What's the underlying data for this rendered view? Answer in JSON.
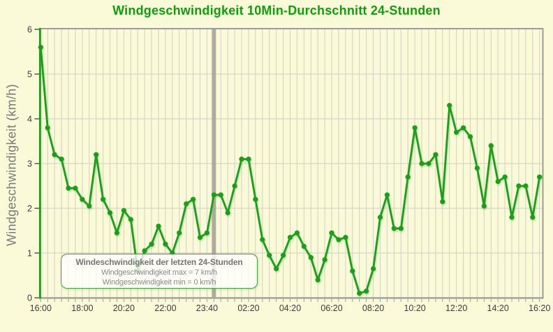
{
  "header": {
    "title": "Windgeschwindigkeit 10Min-Durchschnitt 24-Stunden"
  },
  "tooltip": {
    "title": "Windeschwindigkeit der letzten 24-Stunden",
    "max_line": "Windgeschwindigkeit max = 7 km/h",
    "min_line": "Windgeschwindigkeit min = 0 km/h"
  },
  "chart_data": {
    "type": "line",
    "title": "Windgeschwindigkeit 10Min-Durchschnitt 24-Stunden",
    "xlabel": "",
    "ylabel": "Windgeschwindigkeit (km/h)",
    "ylim": [
      0,
      6
    ],
    "y_ticks": [
      0,
      1,
      2,
      3,
      4,
      5,
      6
    ],
    "grid": true,
    "x_tick_labels": [
      "16:00",
      "18:00",
      "20:20",
      "22:00",
      "23:40",
      "02:20",
      "04:20",
      "06:20",
      "08:20",
      "10:20",
      "12:20",
      "14:20",
      "16:20"
    ],
    "points_per_x_label": 6,
    "values": [
      5.6,
      3.8,
      3.2,
      3.1,
      2.45,
      2.45,
      2.2,
      2.05,
      3.2,
      2.2,
      1.9,
      1.45,
      1.95,
      1.75,
      0.6,
      1.05,
      1.2,
      1.6,
      1.2,
      1.0,
      1.45,
      2.1,
      2.2,
      1.35,
      1.45,
      2.3,
      2.3,
      1.9,
      2.5,
      3.1,
      3.1,
      2.2,
      1.3,
      0.95,
      0.65,
      0.95,
      1.35,
      1.45,
      1.15,
      0.9,
      0.4,
      0.85,
      1.45,
      1.3,
      1.35,
      0.6,
      0.1,
      0.15,
      0.65,
      1.8,
      2.3,
      1.55,
      1.55,
      2.7,
      3.8,
      3.0,
      3.0,
      3.2,
      2.15,
      4.3,
      3.7,
      3.8,
      3.6,
      2.9,
      2.05,
      3.4,
      2.6,
      2.7,
      1.8,
      2.5,
      2.5,
      1.8,
      2.7
    ],
    "midnight_marker_index": 25,
    "colors": {
      "series": "#1C9E1C",
      "title_green": "#0CA00C",
      "background": "#FAFAD8",
      "grid": "#D0D0C5",
      "border": "#9C9C9C",
      "axis_text": "#3C3C3C",
      "muted_text": "#7A7A7A",
      "midnight_marker": "#A8A29A",
      "tooltip_border": "#3FA53F"
    }
  }
}
